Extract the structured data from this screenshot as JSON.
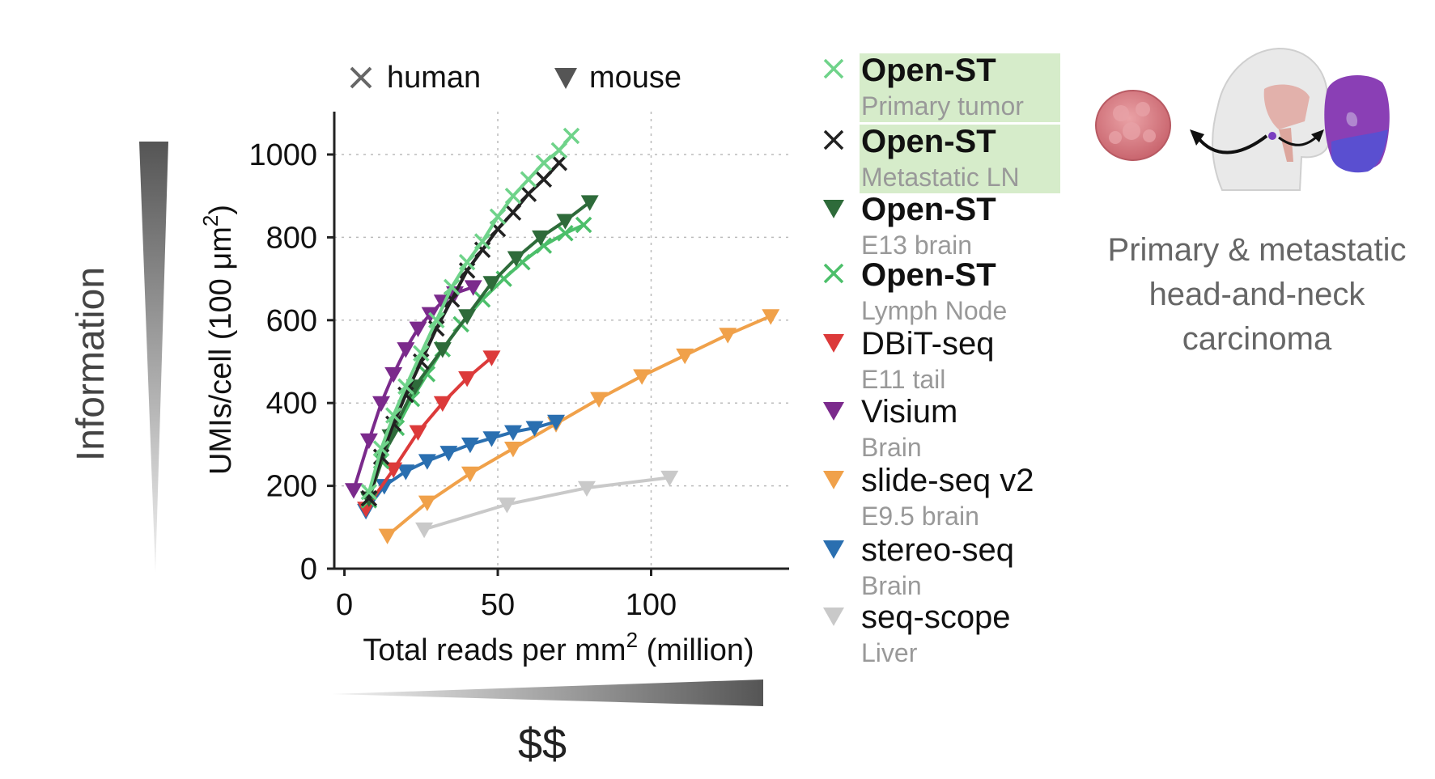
{
  "side_labels": {
    "information": "Information",
    "cost": "$$"
  },
  "marker_key": {
    "human": "human",
    "mouse": "mouse"
  },
  "inset": {
    "caption_lines": [
      "Primary & metastatic",
      "head-and-neck",
      "carcinoma"
    ],
    "colors": {
      "tumor": "#d9848a",
      "node_purple": "#8a3fb5",
      "node_blue": "#5a4fd0",
      "head": "#e9e9e9"
    }
  },
  "chart_data": {
    "type": "line",
    "xlabel": "Total reads per mm",
    "xlabel_sup": "2",
    "xlabel_suffix": " (million)",
    "ylabel": "UMIs/cell (100 μm",
    "ylabel_sup": "2",
    "ylabel_suffix": ")",
    "xlim": [
      -2,
      145
    ],
    "ylim": [
      0,
      1000
    ],
    "xticks": [
      0,
      50,
      100
    ],
    "yticks": [
      0,
      200,
      400,
      600,
      800,
      1000
    ],
    "grid": true,
    "legend_position": "right",
    "series": [
      {
        "name": "Open-ST",
        "subtitle": "Primary tumor",
        "marker": "x",
        "color": "#6fd38a",
        "bold": true,
        "highlight": true,
        "x": [
          8,
          12,
          16,
          20,
          25,
          30,
          35,
          40,
          45,
          50,
          55,
          60,
          65,
          70,
          74
        ],
        "y": [
          185,
          290,
          370,
          440,
          520,
          600,
          680,
          740,
          790,
          850,
          900,
          940,
          980,
          1010,
          1045
        ]
      },
      {
        "name": "Open-ST",
        "subtitle": "Metastatic LN",
        "marker": "x",
        "color": "#222222",
        "bold": true,
        "highlight": true,
        "x": [
          8,
          12,
          16,
          20,
          25,
          30,
          35,
          40,
          45,
          50,
          55,
          60,
          65,
          70
        ],
        "y": [
          170,
          270,
          350,
          420,
          500,
          580,
          650,
          720,
          770,
          820,
          860,
          905,
          940,
          980
        ]
      },
      {
        "name": "Open-ST",
        "subtitle": "E13 brain",
        "marker": "tri",
        "color": "#2e6b3a",
        "bold": true,
        "highlight": false,
        "x": [
          8,
          15,
          23,
          32,
          40,
          48,
          56,
          64,
          72,
          80
        ],
        "y": [
          170,
          320,
          440,
          530,
          610,
          690,
          750,
          800,
          840,
          885
        ]
      },
      {
        "name": "Open-ST",
        "subtitle": "Lymph Node",
        "marker": "x",
        "color": "#4cbf6a",
        "bold": true,
        "highlight": false,
        "x": [
          8,
          12,
          17,
          22,
          27,
          32,
          38,
          45,
          52,
          58,
          65,
          72,
          78
        ],
        "y": [
          165,
          260,
          340,
          410,
          470,
          530,
          590,
          650,
          700,
          740,
          780,
          810,
          830
        ]
      },
      {
        "name": "DBiT-seq",
        "subtitle": "E11 tail",
        "marker": "tri",
        "color": "#dc3a3a",
        "bold": false,
        "highlight": false,
        "x": [
          7,
          16,
          24,
          32,
          40,
          48
        ],
        "y": [
          145,
          240,
          330,
          400,
          460,
          510
        ]
      },
      {
        "name": "Visium",
        "subtitle": "Brain",
        "marker": "tri",
        "color": "#7b2a8c",
        "bold": false,
        "highlight": false,
        "x": [
          3,
          8,
          12,
          16,
          20,
          24,
          28,
          32,
          36,
          42
        ],
        "y": [
          190,
          310,
          400,
          470,
          530,
          580,
          615,
          645,
          665,
          680
        ]
      },
      {
        "name": "slide-seq v2",
        "subtitle": "E9.5 brain",
        "marker": "tri",
        "color": "#f0a14a",
        "bold": false,
        "highlight": false,
        "x": [
          14,
          27,
          41,
          55,
          69,
          83,
          97,
          111,
          125,
          139
        ],
        "y": [
          80,
          160,
          230,
          290,
          350,
          410,
          465,
          515,
          565,
          610
        ]
      },
      {
        "name": "stereo-seq",
        "subtitle": "Brain",
        "marker": "tri",
        "color": "#2a6fb0",
        "bold": false,
        "highlight": false,
        "x": [
          7,
          13,
          20,
          27,
          34,
          41,
          48,
          55,
          62,
          69
        ],
        "y": [
          140,
          200,
          235,
          260,
          280,
          300,
          315,
          330,
          340,
          355
        ]
      },
      {
        "name": "seq-scope",
        "subtitle": "Liver",
        "marker": "tri",
        "color": "#c9c9c9",
        "bold": false,
        "highlight": false,
        "x": [
          26,
          53,
          79,
          106
        ],
        "y": [
          95,
          155,
          195,
          220
        ]
      }
    ]
  }
}
